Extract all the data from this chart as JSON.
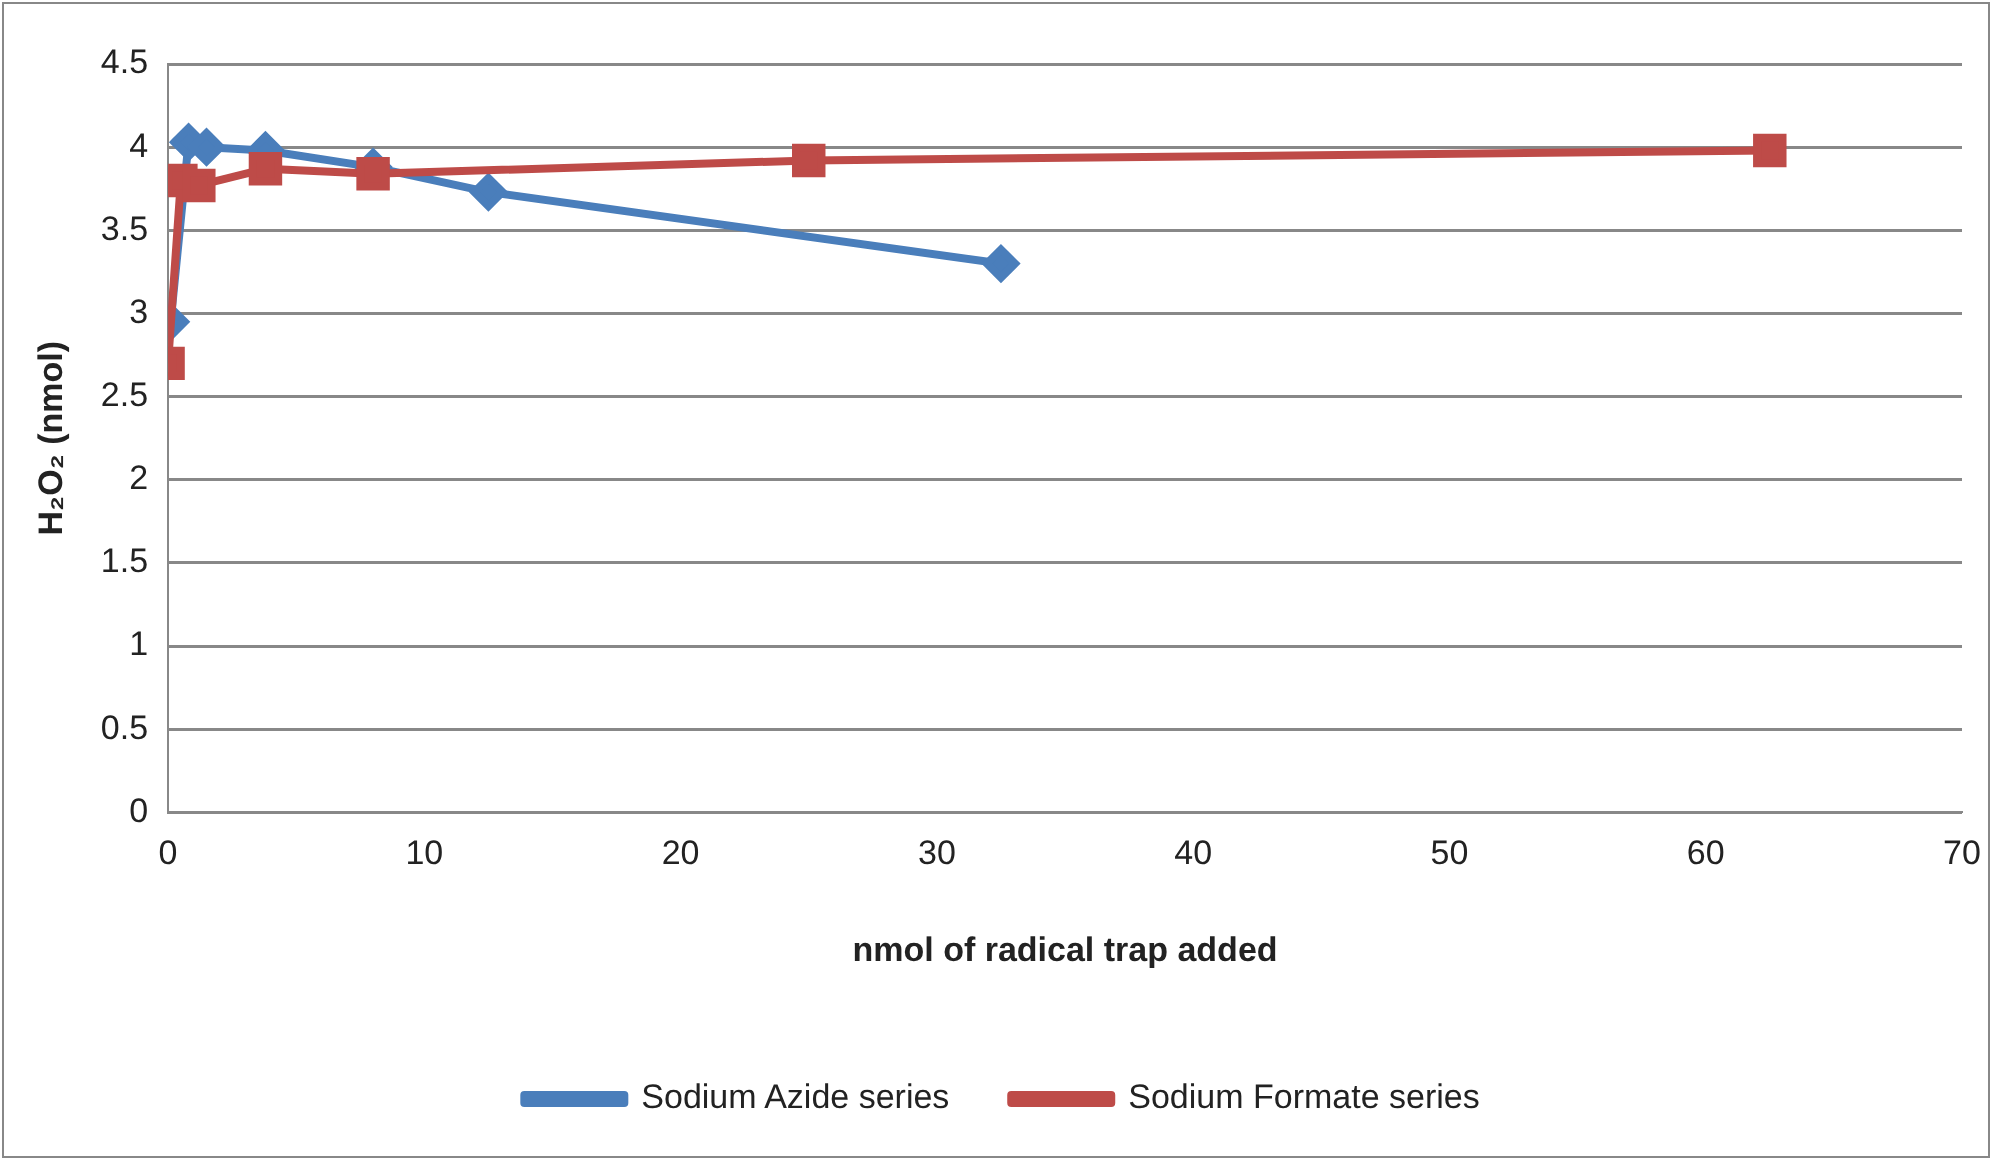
{
  "chart_data": {
    "type": "line",
    "xlabel": "nmol of radical trap added",
    "ylabel": "H₂O₂ (nmol)",
    "xlim": [
      0,
      70
    ],
    "xticks": [
      0,
      10,
      20,
      30,
      40,
      50,
      60,
      70
    ],
    "ylim": [
      0,
      4.5
    ],
    "yticks": [
      0,
      0.5,
      1,
      1.5,
      2,
      2.5,
      3,
      3.5,
      4,
      4.5
    ],
    "grid": "y",
    "legend": "bottom",
    "series": [
      {
        "name": "Sodium Azide series",
        "color": "#4a7ebb",
        "marker": "diamond",
        "x": [
          0.1,
          0.8,
          1.5,
          3.8,
          8,
          12.5,
          32.5
        ],
        "values": [
          2.95,
          4.03,
          4.0,
          3.98,
          3.88,
          3.73,
          3.3
        ]
      },
      {
        "name": "Sodium Formate series",
        "color": "#be4b48",
        "marker": "square",
        "x": [
          0,
          0.5,
          1.2,
          3.8,
          8,
          25,
          62.5
        ],
        "values": [
          2.7,
          3.8,
          3.77,
          3.87,
          3.84,
          3.92,
          3.98
        ]
      }
    ]
  }
}
